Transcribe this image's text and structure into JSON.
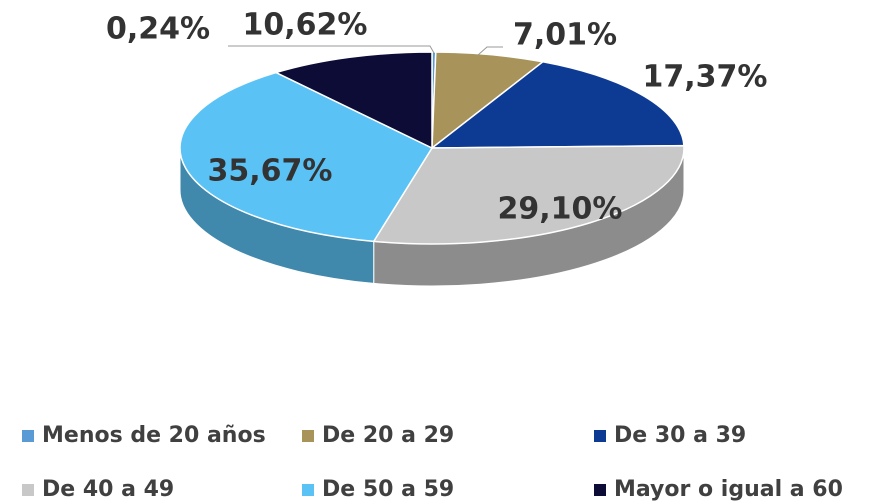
{
  "chart_data": {
    "type": "pie",
    "categories": [
      "Menos de 20 años",
      "De 20 a 29",
      "De 30 a 39",
      "De 40 a 49",
      "De 50 a 59",
      "Mayor o igual a 60"
    ],
    "values": [
      0.24,
      7.01,
      17.37,
      29.1,
      35.67,
      10.62
    ],
    "value_labels": [
      "0,24%",
      "7,01%",
      "17,37%",
      "29,10%",
      "35,67%",
      "10,62%"
    ],
    "colors": [
      "#5b9bd5",
      "#a8935a",
      "#0d3b94",
      "#c8c8c8",
      "#5bc2f5",
      "#0c0c36"
    ],
    "legend": "bottom"
  }
}
